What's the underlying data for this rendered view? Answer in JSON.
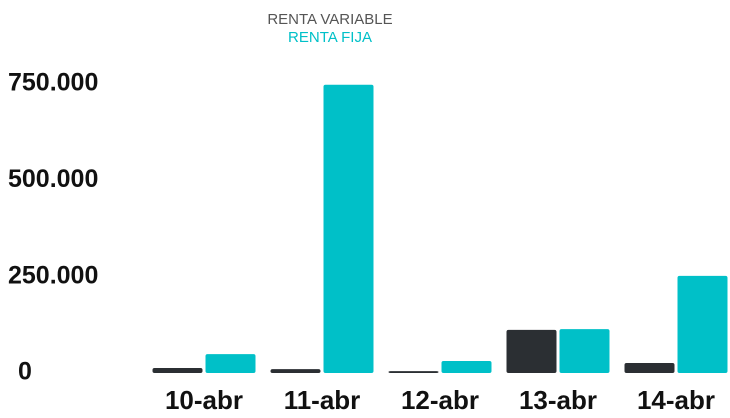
{
  "chart_data": {
    "type": "bar",
    "categories": [
      "10-abr",
      "11-abr",
      "12-abr",
      "13-abr",
      "14-abr"
    ],
    "series": [
      {
        "name": "RENTA VARIABLE",
        "color": "#2b2f33",
        "values": [
          13000,
          10000,
          5000,
          112000,
          26000
        ]
      },
      {
        "name": "RENTA FIJA",
        "color": "#00c0c8",
        "values": [
          49000,
          748000,
          31000,
          114000,
          252000
        ]
      }
    ],
    "ylim": [
      0,
      750000
    ],
    "yticks": [
      0,
      {
        "value": 250000,
        "label": "250.000"
      },
      {
        "value": 500000,
        "label": "500.000"
      },
      {
        "value": 750000,
        "label": "750.000"
      }
    ],
    "grid": false,
    "legend": "top"
  }
}
